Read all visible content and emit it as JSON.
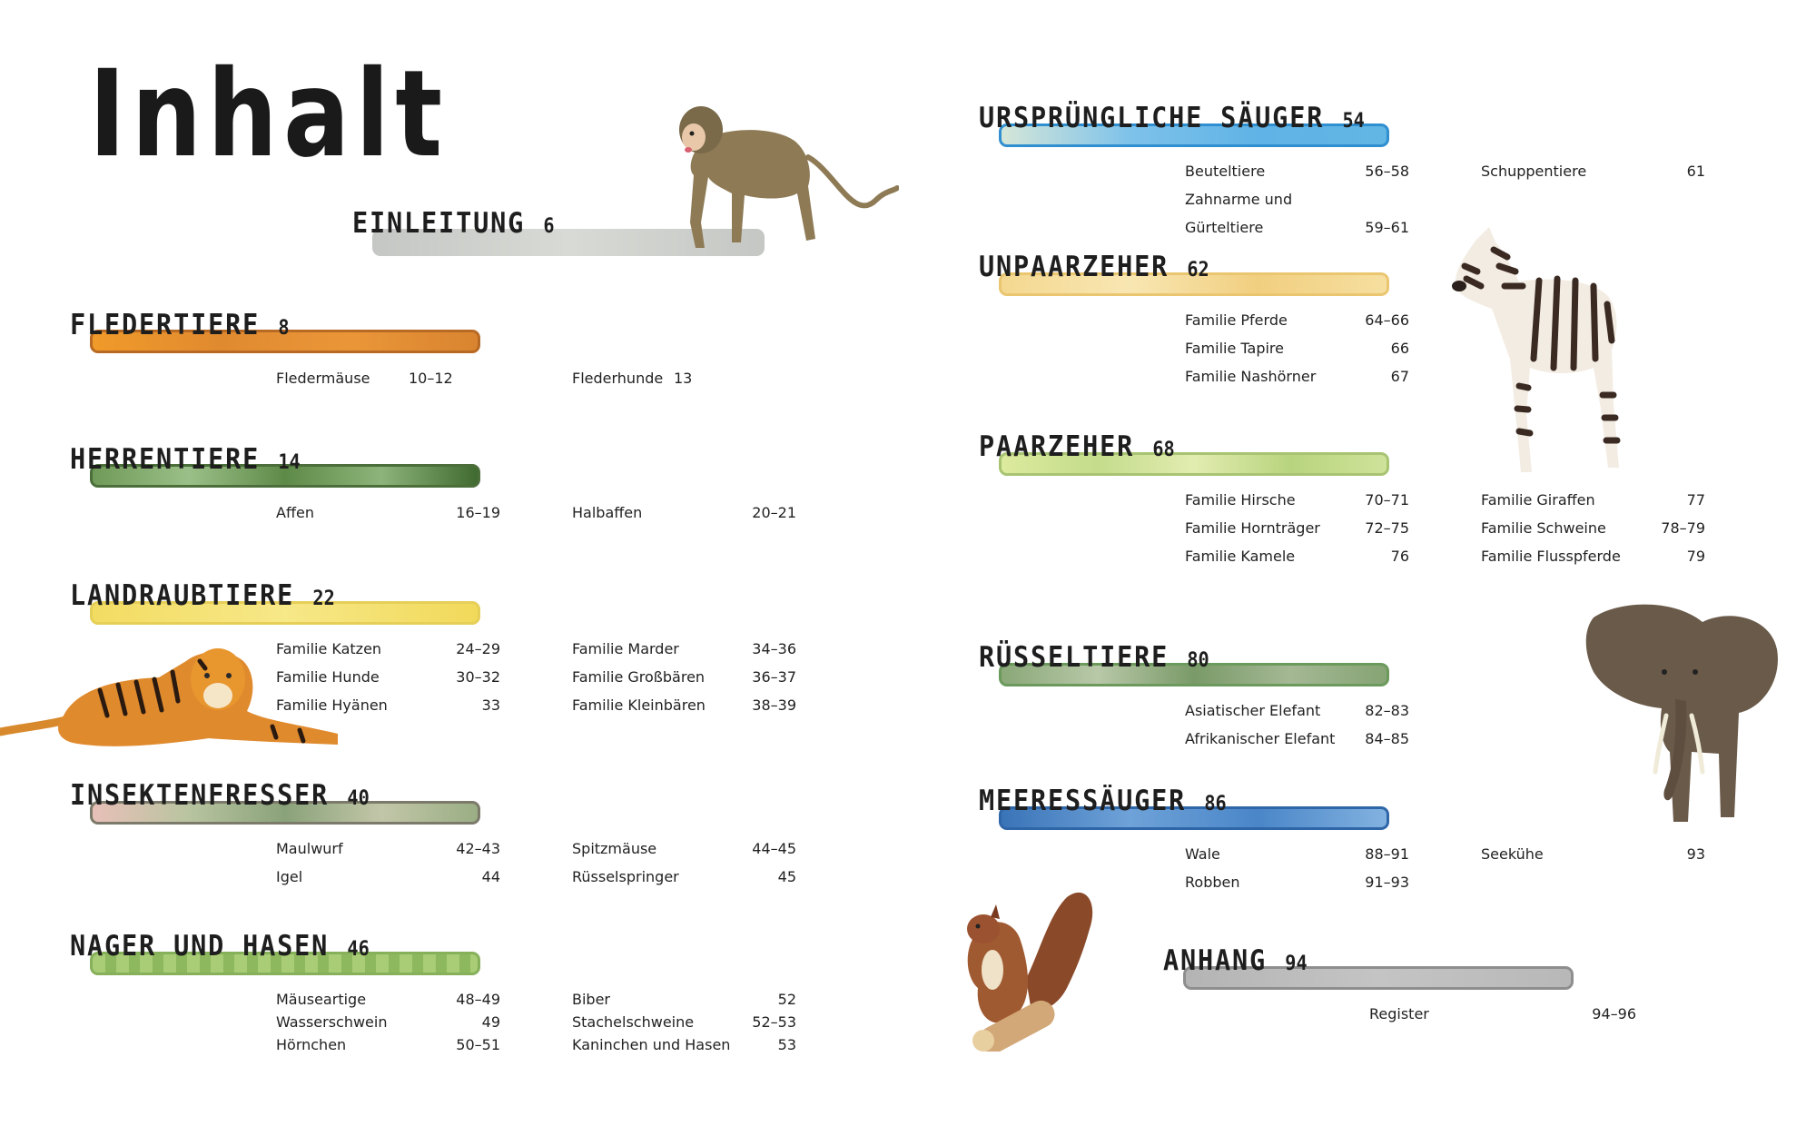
{
  "title": "Inhalt",
  "sections": {
    "einleitung": {
      "name": "EINLEITUNG",
      "page": "6",
      "color": "#c9cbc8",
      "entries": []
    },
    "fledertiere": {
      "name": "FLEDERTIERE",
      "page": "8",
      "color": "#e9871f",
      "entries": [
        {
          "name": "Fledermäuse",
          "pages": "10–12"
        },
        {
          "name": "Flederhunde",
          "pages": "13"
        }
      ]
    },
    "herrentiere": {
      "name": "HERRENTIERE",
      "page": "14",
      "color": "#5e8a4a",
      "entries": [
        {
          "name": "Affen",
          "pages": "16–19"
        },
        {
          "name": "Halbaffen",
          "pages": "20–21"
        }
      ]
    },
    "landraubtiere": {
      "name": "LANDRAUBTIERE",
      "page": "22",
      "color": "#f2dc5c",
      "entries": [
        {
          "name": "Familie Katzen",
          "pages": "24–29"
        },
        {
          "name": "Familie Hunde",
          "pages": "30–32"
        },
        {
          "name": "Familie Hyänen",
          "pages": "33"
        },
        {
          "name": "Familie Marder",
          "pages": "34–36"
        },
        {
          "name": "Familie Großbären",
          "pages": "36–37"
        },
        {
          "name": "Familie Kleinbären",
          "pages": "38–39"
        }
      ]
    },
    "insektenfresser": {
      "name": "INSEKTENFRESSER",
      "page": "40",
      "color": "#b0b28e",
      "entries": [
        {
          "name": "Maulwurf",
          "pages": "42–43"
        },
        {
          "name": "Igel",
          "pages": "44"
        },
        {
          "name": "Spitzmäuse",
          "pages": "44–45"
        },
        {
          "name": "Rüsselspringer",
          "pages": "45"
        }
      ]
    },
    "nager": {
      "name": "NAGER UND HASEN",
      "page": "46",
      "color": "#9fc46a",
      "entries": [
        {
          "name": "Mäuseartige",
          "pages": "48–49"
        },
        {
          "name": "Wasserschwein",
          "pages": "49"
        },
        {
          "name": "Hörnchen",
          "pages": "50–51"
        },
        {
          "name": "Biber",
          "pages": "52"
        },
        {
          "name": "Stachelschweine",
          "pages": "52–53"
        },
        {
          "name": "Kaninchen und Hasen",
          "pages": "53"
        }
      ]
    },
    "urspruengliche": {
      "name": "URSPRÜNGLICHE SÄUGER",
      "page": "54",
      "color": "#62b6e4",
      "entries": [
        {
          "name": "Beuteltiere",
          "pages": "56–58"
        },
        {
          "name": "Zahnarme und",
          "pages": ""
        },
        {
          "name": "Gürteltiere",
          "pages": "59–61"
        },
        {
          "name": "Schuppentiere",
          "pages": "61"
        }
      ]
    },
    "unpaarzeher": {
      "name": "UNPAARZEHER",
      "page": "62",
      "color": "#f3d48e",
      "entries": [
        {
          "name": "Familie Pferde",
          "pages": "64–66"
        },
        {
          "name": "Familie Tapire",
          "pages": "66"
        },
        {
          "name": "Familie Nashörner",
          "pages": "67"
        }
      ]
    },
    "paarzeher": {
      "name": "PAARZEHER",
      "page": "68",
      "color": "#c9df8e",
      "entries": [
        {
          "name": "Familie Hirsche",
          "pages": "70–71"
        },
        {
          "name": "Familie Hornträger",
          "pages": "72–75"
        },
        {
          "name": "Familie Kamele",
          "pages": "76"
        },
        {
          "name": "Familie Giraffen",
          "pages": "77"
        },
        {
          "name": "Familie Schweine",
          "pages": "78–79"
        },
        {
          "name": "Familie Flusspferde",
          "pages": "79"
        }
      ]
    },
    "ruesseltiere": {
      "name": "RÜSSELTIERE",
      "page": "80",
      "color": "#7fa86a",
      "entries": [
        {
          "name": "Asiatischer Elefant",
          "pages": "82–83"
        },
        {
          "name": "Afrikanischer Elefant",
          "pages": "84–85"
        }
      ]
    },
    "meeressaeuger": {
      "name": "MEERESSÄUGER",
      "page": "86",
      "color": "#4a86c8",
      "entries": [
        {
          "name": "Wale",
          "pages": "88–91"
        },
        {
          "name": "Robben",
          "pages": "91–93"
        },
        {
          "name": "Seekühe",
          "pages": "93"
        }
      ]
    },
    "anhang": {
      "name": "ANHANG",
      "page": "94",
      "color": "#b8b8b8",
      "entries": [
        {
          "name": "Register",
          "pages": "94–96"
        }
      ]
    }
  },
  "illustrations": [
    "monkey-icon",
    "tiger-icon",
    "zebra-icon",
    "elephant-icon",
    "squirrel-icon"
  ]
}
